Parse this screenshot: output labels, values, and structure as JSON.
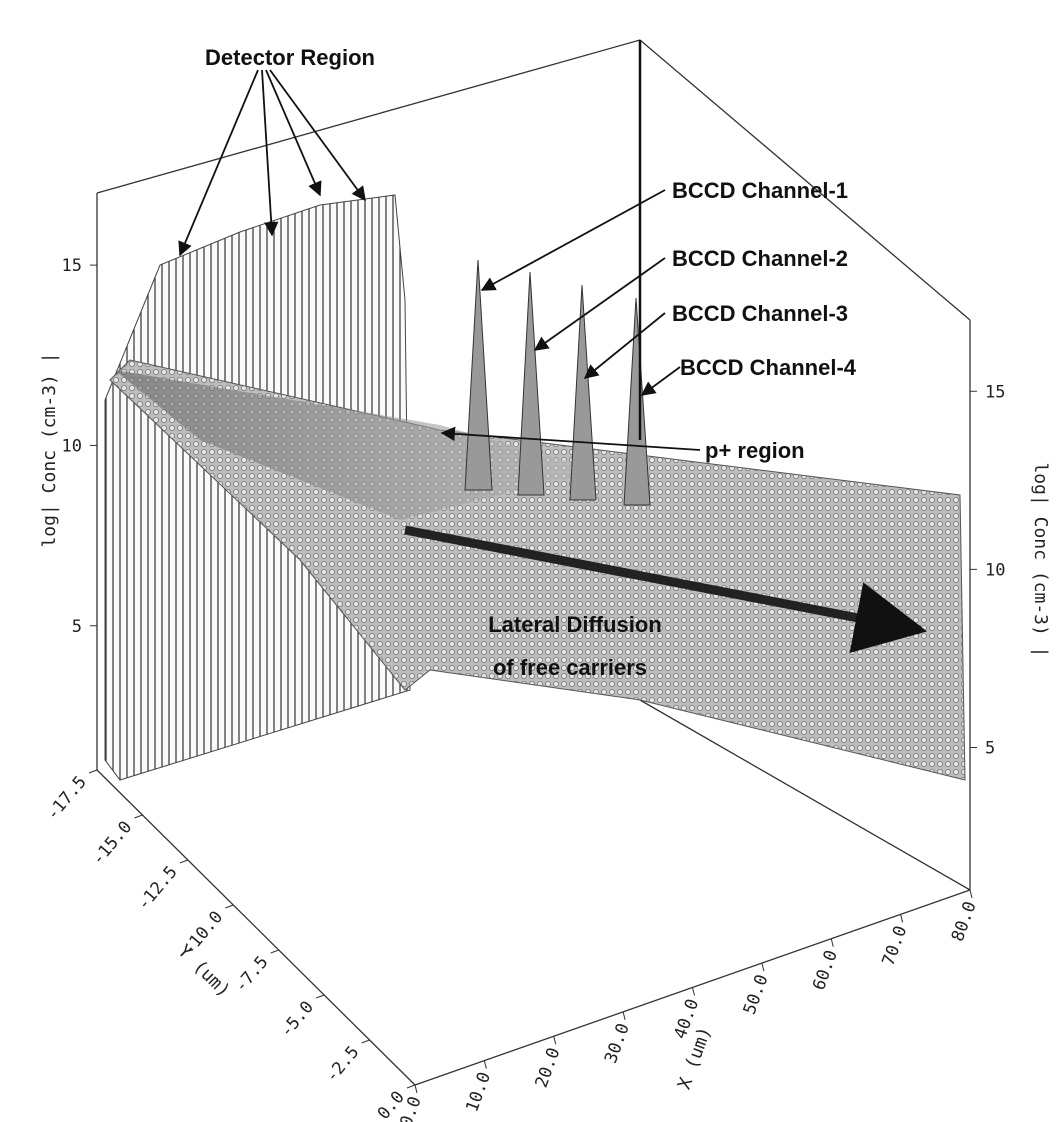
{
  "chart_data": {
    "type": "surface3d",
    "xlabel": "X (um)",
    "ylabel": "Y (um)",
    "zlabel": "log| Conc (cm-3) |",
    "xlim": [
      0,
      80
    ],
    "ylim": [
      -17.5,
      0
    ],
    "zlim": [
      1,
      17
    ],
    "xticks": [
      {
        "value": 0,
        "label": "0.0"
      },
      {
        "value": 10,
        "label": "10.0"
      },
      {
        "value": 20,
        "label": "20.0"
      },
      {
        "value": 30,
        "label": "30.0"
      },
      {
        "value": 40,
        "label": "40.0"
      },
      {
        "value": 50,
        "label": "50.0"
      },
      {
        "value": 60,
        "label": "60.0"
      },
      {
        "value": 70,
        "label": "70.0"
      },
      {
        "value": 80,
        "label": "80.0"
      }
    ],
    "yticks": [
      -17.5,
      {
        "value": -15,
        "label": "-15.0"
      },
      -12.5,
      {
        "value": -10,
        "label": "-10.0"
      },
      -7.5,
      {
        "value": -5,
        "label": "-5.0"
      },
      -2.5,
      {
        "value": 0,
        "label": "0.0"
      }
    ],
    "zticks": [
      5,
      10,
      15
    ],
    "annotations": [
      "Detector Region",
      "BCCD Channel-1",
      "BCCD Channel-2",
      "BCCD Channel-3",
      "BCCD Channel-4",
      "p+ region",
      "Lateral Diffusion",
      "of free carriers"
    ]
  }
}
